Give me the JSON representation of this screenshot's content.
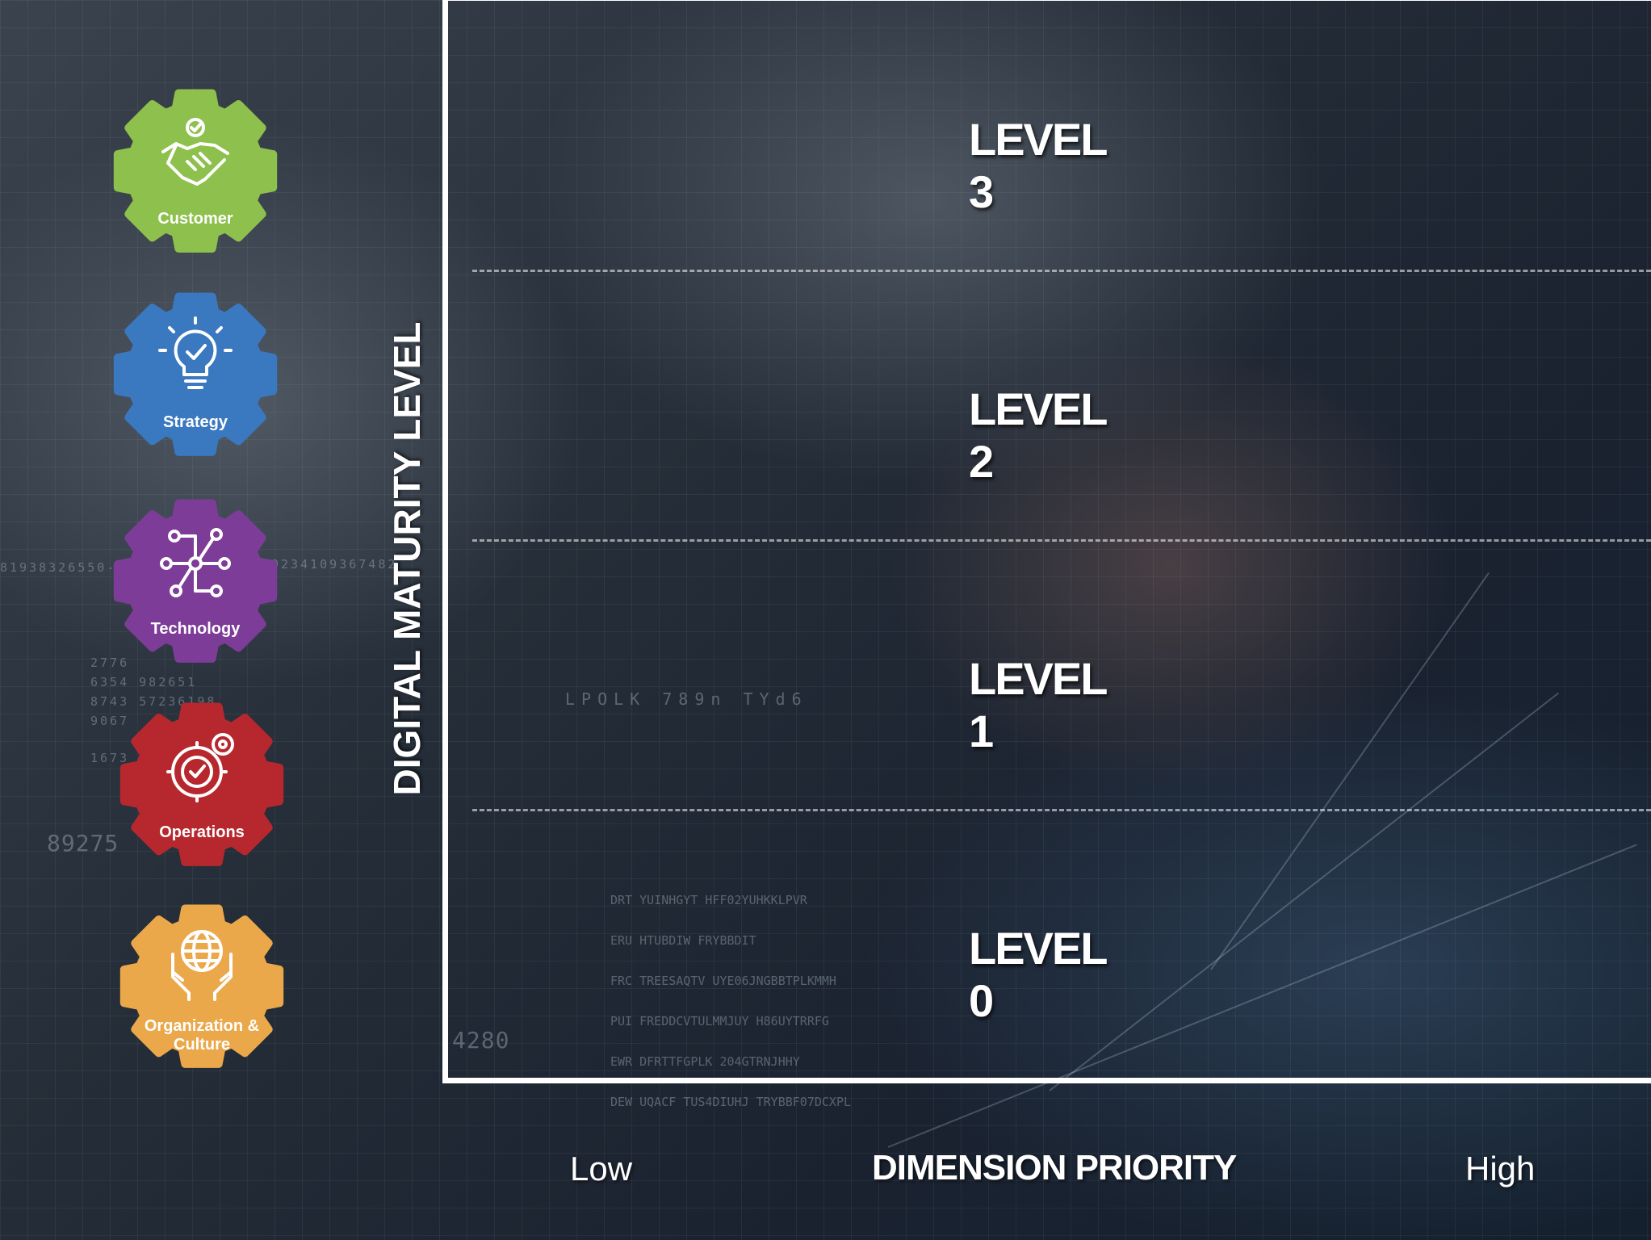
{
  "diagram": {
    "y_axis_title": "DIGITAL MATURITY LEVEL",
    "x_axis_title": "DIMENSION PRIORITY",
    "x_axis_low": "Low",
    "x_axis_high": "High",
    "levels": [
      "LEVEL 3",
      "LEVEL 2",
      "LEVEL 1",
      "LEVEL 0"
    ]
  },
  "dimensions": [
    {
      "label": "Customer",
      "color": "#8dc04c",
      "icon": "handshake-icon"
    },
    {
      "label": "Strategy",
      "color": "#3a78c0",
      "icon": "lightbulb-icon"
    },
    {
      "label": "Technology",
      "color": "#7d3c98",
      "icon": "network-icon"
    },
    {
      "label": "Operations",
      "color": "#b7282e",
      "icon": "gear-check-icon"
    },
    {
      "label": "Organization & Culture",
      "color": "#eba84a",
      "icon": "globe-hands-icon"
    }
  ],
  "background_text": [
    "81938326550-94",
    "9234109367482",
    "2776",
    "6354 982651",
    "8743 57236198",
    "9067",
    "1673",
    "89275",
    "4280",
    "LPOLK 789n TYd6",
    "DRT YUINHGYT HFF02YUHKKLPVR",
    "ERU HTUBDIW FRYBBDIT",
    "FRC TREESAQTV UYE06JNGBBTPLKMMH",
    "PUI FREDDCVTULMMJUY H86UYTRRFG",
    "EWR DFRTTFGPLK 204GTRNJHHY",
    "DEW UQACF TUS4DIUHJ TRYBBF07DCXPL"
  ]
}
